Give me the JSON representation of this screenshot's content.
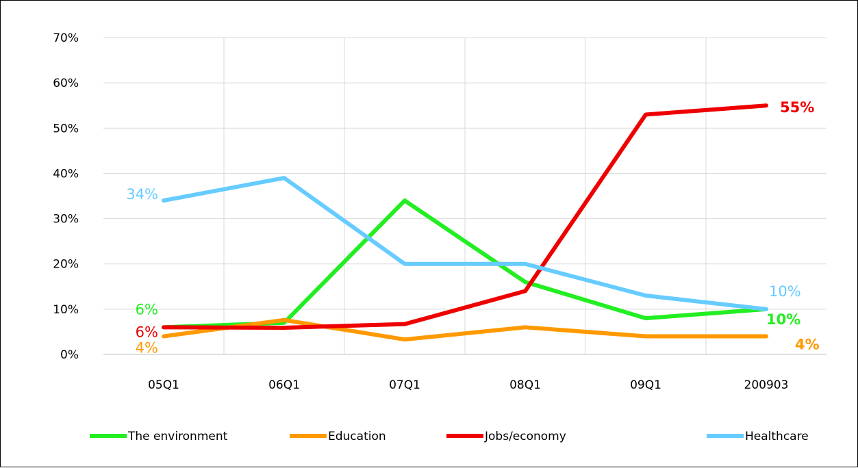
{
  "chart_data": {
    "type": "line",
    "title": "",
    "xlabel": "",
    "ylabel": "",
    "categories": [
      "05Q1",
      "06Q1",
      "07Q1",
      "08Q1",
      "09Q1",
      "200903"
    ],
    "ylim": [
      0,
      70
    ],
    "yticks": [
      "0%",
      "10%",
      "20%",
      "30%",
      "40%",
      "50%",
      "60%",
      "70%"
    ],
    "grid": true,
    "legend_position": "bottom",
    "series": [
      {
        "name": "The environment",
        "color": "#22ee22",
        "values": [
          6,
          7,
          34,
          16,
          8,
          10
        ]
      },
      {
        "name": "Education",
        "color": "#ff9900",
        "values": [
          4,
          7.6,
          3.3,
          6,
          4,
          4
        ]
      },
      {
        "name": "Jobs/economy",
        "color": "#ee0000",
        "values": [
          6,
          5.9,
          6.7,
          14,
          53,
          55
        ]
      },
      {
        "name": "Healthcare",
        "color": "#66ccff",
        "values": [
          34,
          39,
          20,
          20,
          13,
          10
        ]
      }
    ],
    "data_labels": [
      {
        "series": 0,
        "index": 0,
        "text": "6%"
      },
      {
        "series": 1,
        "index": 0,
        "text": "4%"
      },
      {
        "series": 2,
        "index": 0,
        "text": "6%"
      },
      {
        "series": 3,
        "index": 0,
        "text": "34%"
      },
      {
        "series": 2,
        "index": 5,
        "text": "55%"
      },
      {
        "series": 3,
        "index": 5,
        "text": "10%"
      },
      {
        "series": 0,
        "index": 5,
        "text": "10%"
      },
      {
        "series": 1,
        "index": 5,
        "text": "4%"
      }
    ]
  }
}
